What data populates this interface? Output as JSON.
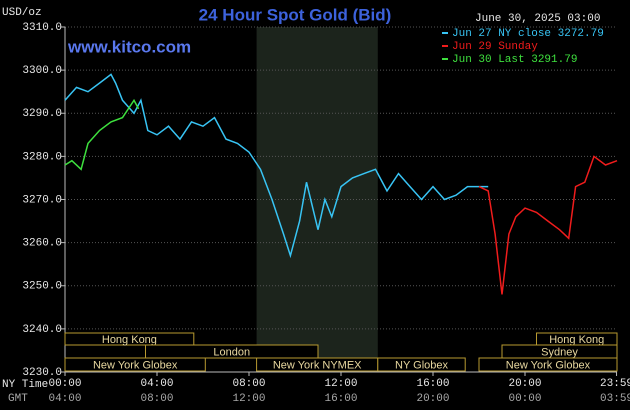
{
  "chart_data": {
    "type": "line",
    "title": "24 Hour Spot Gold (Bid)",
    "timestamp": "June 30, 2025 03:00",
    "watermark": "www.kitco.com",
    "y_label": "USD/oz",
    "x_label": "NY Time",
    "x2_label": "GMT",
    "xlim": [
      0,
      24
    ],
    "ylim": [
      3230,
      3310
    ],
    "grid": true,
    "xticks": [
      {
        "value": 0,
        "label": "00:00"
      },
      {
        "value": 4,
        "label": "04:00"
      },
      {
        "value": 8,
        "label": "08:00"
      },
      {
        "value": 12,
        "label": "12:00"
      },
      {
        "value": 16,
        "label": "16:00"
      },
      {
        "value": 20,
        "label": "20:00"
      },
      {
        "value": 23.98,
        "label": "23:59"
      }
    ],
    "x2ticks": [
      {
        "value": 0,
        "label": "04:00"
      },
      {
        "value": 4,
        "label": "08:00"
      },
      {
        "value": 8,
        "label": "12:00"
      },
      {
        "value": 12,
        "label": "16:00"
      },
      {
        "value": 16,
        "label": "20:00"
      },
      {
        "value": 20,
        "label": "00:00"
      },
      {
        "value": 23.98,
        "label": "03:59"
      }
    ],
    "yticks": [
      {
        "value": 3230,
        "label": "3230.0"
      },
      {
        "value": 3240,
        "label": "3240.0"
      },
      {
        "value": 3250,
        "label": "3250.0"
      },
      {
        "value": 3260,
        "label": "3260.0"
      },
      {
        "value": 3270,
        "label": "3270.0"
      },
      {
        "value": 3280,
        "label": "3280.0"
      },
      {
        "value": 3290,
        "label": "3290.0"
      },
      {
        "value": 3300,
        "label": "3300.0"
      },
      {
        "value": 3310,
        "label": "3310.0"
      }
    ],
    "series": [
      {
        "name": "Jun 27 NY close 3272.79",
        "color": "#38c4f4",
        "x": [
          0,
          0.5,
          1,
          1.5,
          2,
          2.2,
          2.5,
          3,
          3.3,
          3.6,
          4,
          4.5,
          5,
          5.5,
          6,
          6.5,
          7,
          7.5,
          8,
          8.5,
          9,
          9.5,
          9.8,
          10.2,
          10.5,
          11,
          11.3,
          11.6,
          12,
          12.5,
          13,
          13.5,
          14,
          14.5,
          15,
          15.5,
          16,
          16.5,
          17,
          17.5,
          18,
          18.4
        ],
        "values": [
          3293,
          3296,
          3295,
          3297,
          3299,
          3297,
          3293,
          3290,
          3293,
          3286,
          3285,
          3287,
          3284,
          3288,
          3287,
          3289,
          3284,
          3283,
          3281,
          3277,
          3270,
          3262,
          3257,
          3265,
          3274,
          3263,
          3270,
          3266,
          3273,
          3275,
          3276,
          3277,
          3272,
          3276,
          3273,
          3270,
          3273,
          3270,
          3271,
          3273,
          3273,
          3273
        ]
      },
      {
        "name": "Jun 29 Sunday",
        "color": "#f01c1c",
        "x": [
          18,
          18.4,
          18.7,
          19,
          19.3,
          19.6,
          20,
          20.5,
          21,
          21.5,
          21.9,
          22.2,
          22.6,
          23,
          23.5,
          24
        ],
        "values": [
          3273,
          3272,
          3262,
          3248,
          3262,
          3266,
          3268,
          3267,
          3265,
          3263,
          3261,
          3273,
          3274,
          3280,
          3278,
          3279
        ]
      },
      {
        "name": "Jun 30 Last 3291.79",
        "color": "#3ee03e",
        "x": [
          0,
          0.3,
          0.7,
          1,
          1.5,
          2,
          2.5,
          3,
          3.2
        ],
        "values": [
          3278,
          3279,
          3277,
          3283,
          3286,
          3288,
          3289,
          3293,
          3291
        ]
      }
    ],
    "session_rows": [
      [
        {
          "label": "Hong Kong",
          "start": 0,
          "end": 5.6
        },
        {
          "label": "Hong Kong",
          "start": 20.5,
          "end": 24
        }
      ],
      [
        {
          "label": "London",
          "start": 3.5,
          "end": 11
        },
        {
          "label": "Sydney",
          "start": 19,
          "end": 24
        }
      ],
      [
        {
          "label": "New York Globex",
          "start": 0,
          "end": 6.1
        },
        {
          "label": "New York NYMEX",
          "start": 8.33,
          "end": 13.6,
          "highlight": true
        },
        {
          "label": "NY Globex",
          "start": 13.6,
          "end": 17.4
        },
        {
          "label": "New York Globex",
          "start": 18,
          "end": 24
        }
      ]
    ]
  }
}
